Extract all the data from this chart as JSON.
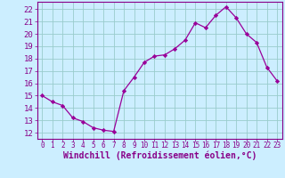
{
  "x": [
    0,
    1,
    2,
    3,
    4,
    5,
    6,
    7,
    8,
    9,
    10,
    11,
    12,
    13,
    14,
    15,
    16,
    17,
    18,
    19,
    20,
    21,
    22,
    23
  ],
  "y": [
    15.0,
    14.5,
    14.2,
    13.2,
    12.9,
    12.4,
    12.2,
    12.1,
    15.4,
    16.5,
    17.7,
    18.2,
    18.3,
    18.8,
    19.5,
    20.9,
    20.5,
    21.5,
    22.2,
    21.3,
    20.0,
    19.3,
    17.3,
    16.2
  ],
  "line_color": "#990099",
  "marker": "D",
  "marker_size": 2.2,
  "bg_color": "#cceeff",
  "grid_color": "#99cccc",
  "xlabel": "Windchill (Refroidissement éolien,°C)",
  "xlabel_fontsize": 7,
  "tick_color": "#880088",
  "yticks": [
    12,
    13,
    14,
    15,
    16,
    17,
    18,
    19,
    20,
    21,
    22
  ],
  "xticks": [
    0,
    1,
    2,
    3,
    4,
    5,
    6,
    7,
    8,
    9,
    10,
    11,
    12,
    13,
    14,
    15,
    16,
    17,
    18,
    19,
    20,
    21,
    22,
    23
  ],
  "ylim": [
    11.5,
    22.6
  ],
  "xlim": [
    -0.5,
    23.5
  ],
  "ytick_fontsize": 6.5,
  "xtick_fontsize": 5.5
}
